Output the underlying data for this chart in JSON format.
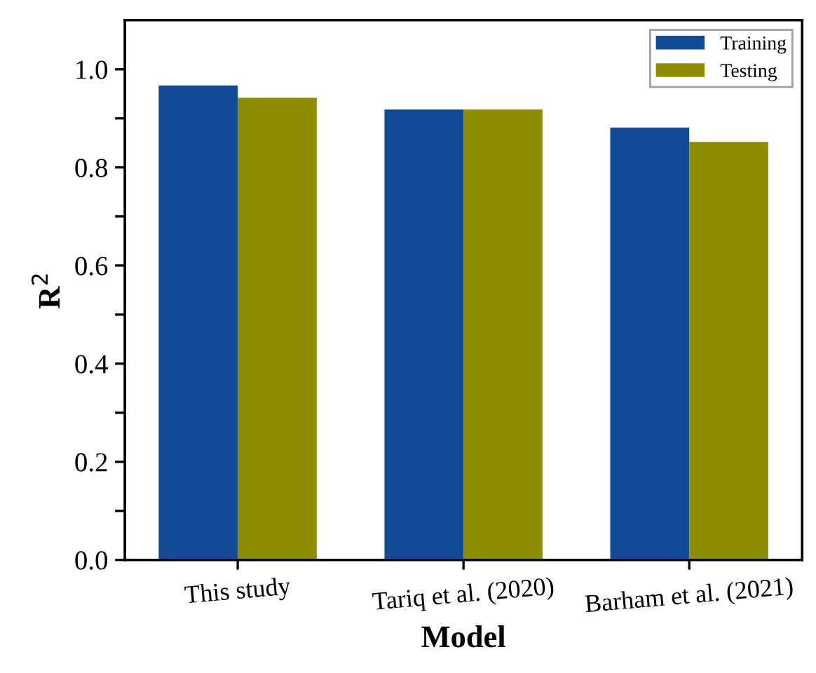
{
  "chart_data": {
    "type": "bar",
    "xlabel": "Model",
    "ylabel": "R$^{2}$",
    "categories": [
      "This study",
      "Tariq et al. (2020)",
      "Barham et al. (2021)"
    ],
    "series": [
      {
        "name": "Training",
        "color": "#124a96",
        "values": [
          0.967,
          0.918,
          0.881
        ]
      },
      {
        "name": "Testing",
        "color": "#8e8c00",
        "values": [
          0.942,
          0.918,
          0.852
        ]
      }
    ],
    "ylim": [
      0,
      1.1
    ],
    "yticks": [
      {
        "value": 0,
        "label": "0.0"
      },
      {
        "value": 0.1,
        "label": null
      },
      0.2,
      {
        "value": 0.3,
        "label": null
      },
      0.4,
      {
        "value": 0.5,
        "label": null
      },
      0.6,
      {
        "value": 0.7,
        "label": null
      },
      0.8,
      {
        "value": 0.9,
        "label": null
      },
      {
        "value": 1,
        "label": "1.0"
      }
    ],
    "legend": "top right",
    "grid": false
  }
}
